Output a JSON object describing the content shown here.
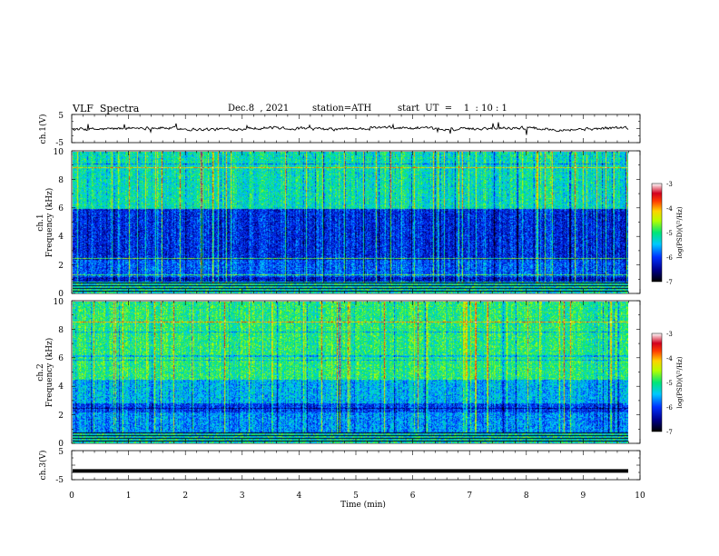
{
  "header": {
    "title": "VLF  Spectra",
    "date": "Dec.8  , 2021",
    "station": "station=ATH",
    "start": "start  UT  =    1  : 10 : 1"
  },
  "chart_data": [
    {
      "type": "line",
      "panel": "ch1-waveform",
      "ylabel": "ch.1(V)",
      "yticks": [
        "5",
        "-5"
      ],
      "ylim": [
        -5,
        5
      ],
      "xlim": [
        0,
        10
      ],
      "baseline": 0,
      "trace_color": "#000000"
    },
    {
      "type": "heatmap",
      "panel": "ch1-spectrogram",
      "ylabel": "ch.1\nFrequency  (kHz)",
      "ylabel_line1": "ch.1",
      "ylabel_line2": "Frequency  (kHz)",
      "yticks": [
        "0",
        "2",
        "4",
        "6",
        "8",
        "10"
      ],
      "ylim": [
        0,
        10
      ],
      "xlim": [
        0,
        9.83
      ],
      "colorbar": {
        "label": "log(PSD)(V²/Hz)",
        "ticks": [
          "-3",
          "-4",
          "-5",
          "-6",
          "-7"
        ],
        "range": [
          -7,
          -3
        ]
      }
    },
    {
      "type": "heatmap",
      "panel": "ch2-spectrogram",
      "ylabel": "ch.2\nFrequency  (kHz)",
      "ylabel_line1": "ch.2",
      "ylabel_line2": "Frequency  (kHz)",
      "yticks": [
        "0",
        "2",
        "4",
        "6",
        "8",
        "10"
      ],
      "ylim": [
        0,
        10
      ],
      "xlim": [
        0,
        9.83
      ],
      "colorbar": {
        "label": "log(PSD)(V²/Hz)",
        "ticks": [
          "-3",
          "-4",
          "-5",
          "-6",
          "-7"
        ],
        "range": [
          -7,
          -3
        ]
      }
    },
    {
      "type": "line",
      "panel": "ch3-waveform",
      "ylabel": "ch.3(V)",
      "yticks": [
        "5",
        "-5"
      ],
      "ylim": [
        -5,
        5
      ],
      "xlim": [
        0,
        10
      ],
      "baseline": -2,
      "trace_color": "#000000"
    }
  ],
  "xaxis": {
    "label": "Time  (min)",
    "ticks": [
      "0",
      "1",
      "2",
      "3",
      "4",
      "5",
      "6",
      "7",
      "8",
      "9",
      "10"
    ],
    "range": [
      0,
      10
    ]
  }
}
